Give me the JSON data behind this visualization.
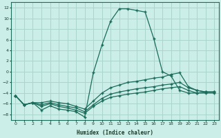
{
  "xlabel": "Humidex (Indice chaleur)",
  "bg_color": "#cceee8",
  "grid_color": "#aad4cc",
  "line_color": "#1a6b5a",
  "xlim": [
    -0.5,
    23.5
  ],
  "ylim": [
    -9,
    13
  ],
  "xticks": [
    0,
    1,
    2,
    3,
    4,
    5,
    6,
    7,
    8,
    9,
    10,
    11,
    12,
    13,
    14,
    15,
    16,
    17,
    18,
    19,
    20,
    21,
    22,
    23
  ],
  "yticks": [
    -8,
    -6,
    -4,
    -2,
    0,
    2,
    4,
    6,
    8,
    10,
    12
  ],
  "line1_x": [
    0,
    1,
    2,
    3,
    4,
    5,
    6,
    7,
    8,
    9,
    10,
    11,
    12,
    13,
    14,
    15,
    16,
    17,
    18,
    19,
    20,
    21,
    22,
    23
  ],
  "line1_y": [
    -4.5,
    -6.2,
    -5.8,
    -7.2,
    -6.4,
    -7.0,
    -7.2,
    -7.5,
    -8.5,
    -0.2,
    5.0,
    9.5,
    11.8,
    11.8,
    11.5,
    11.2,
    6.2,
    0.0,
    -0.8,
    -3.5,
    -4.0,
    -4.0,
    -3.8,
    -3.8
  ],
  "line2_x": [
    0,
    1,
    2,
    3,
    4,
    5,
    6,
    7,
    8,
    9,
    10,
    11,
    12,
    13,
    14,
    15,
    16,
    17,
    18,
    19,
    20,
    21,
    22,
    23
  ],
  "line2_y": [
    -4.5,
    -6.2,
    -5.8,
    -6.5,
    -6.0,
    -6.5,
    -6.8,
    -7.2,
    -7.8,
    -6.5,
    -5.5,
    -4.8,
    -4.5,
    -4.2,
    -4.0,
    -3.8,
    -3.5,
    -3.2,
    -3.0,
    -2.8,
    -3.5,
    -4.0,
    -4.0,
    -4.0
  ],
  "line3_x": [
    0,
    1,
    2,
    3,
    4,
    5,
    6,
    7,
    8,
    9,
    10,
    11,
    12,
    13,
    14,
    15,
    16,
    17,
    18,
    19,
    20,
    21,
    22,
    23
  ],
  "line3_y": [
    -4.5,
    -6.2,
    -5.8,
    -6.2,
    -5.8,
    -6.2,
    -6.5,
    -6.8,
    -7.5,
    -6.2,
    -5.0,
    -4.2,
    -3.8,
    -3.5,
    -3.2,
    -3.0,
    -2.8,
    -2.5,
    -2.3,
    -2.0,
    -3.0,
    -3.5,
    -3.8,
    -3.8
  ],
  "line4_x": [
    0,
    1,
    2,
    3,
    4,
    5,
    6,
    7,
    8,
    9,
    10,
    11,
    12,
    13,
    14,
    15,
    16,
    17,
    18,
    19,
    20,
    21,
    22,
    23
  ],
  "line4_y": [
    -4.5,
    -6.2,
    -5.8,
    -5.8,
    -5.5,
    -5.8,
    -6.0,
    -6.5,
    -7.0,
    -5.5,
    -4.0,
    -3.0,
    -2.5,
    -2.0,
    -1.8,
    -1.5,
    -1.2,
    -1.0,
    -0.5,
    -0.2,
    -2.8,
    -3.5,
    -3.8,
    -3.8
  ]
}
